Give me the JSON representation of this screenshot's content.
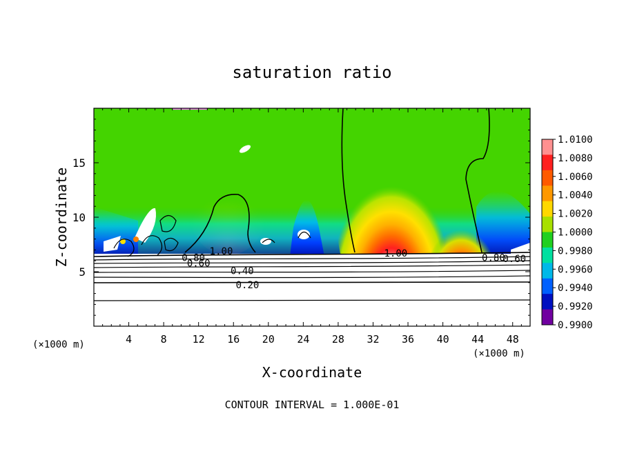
{
  "chart_data": {
    "type": "heatmap",
    "title": "saturation ratio",
    "xlabel": "X-coordinate",
    "ylabel": "Z-coordinate",
    "x_unit_left": "(×1000 m)",
    "x_unit_right": "(×1000 m)",
    "xlim": [
      0,
      50
    ],
    "ylim": [
      0,
      20
    ],
    "xticks": [
      4,
      8,
      12,
      16,
      20,
      24,
      28,
      32,
      36,
      40,
      44,
      48
    ],
    "xtick_labels": [
      "4",
      "8",
      "12",
      "16",
      "20",
      "24",
      "28",
      "32",
      "36",
      "40",
      "44",
      "48"
    ],
    "yticks": [
      5,
      10,
      15
    ],
    "ytick_labels": [
      "5",
      "10",
      "15"
    ],
    "footer": "CONTOUR INTERVAL = 1.000E-01",
    "colorbar": {
      "levels": [
        1.01,
        1.008,
        1.006,
        1.004,
        1.002,
        1.0,
        0.998,
        0.996,
        0.994,
        0.992,
        0.99
      ],
      "labels": [
        "1.0100",
        "1.0080",
        "1.0060",
        "1.0040",
        "1.0020",
        "1.0000",
        "0.9980",
        "0.9960",
        "0.9940",
        "0.9920",
        "0.9900"
      ],
      "colors": [
        "#ff9090",
        "#ff2020",
        "#ff5a00",
        "#ff9800",
        "#ffd800",
        "#a8e000",
        "#20d020",
        "#00e0a0",
        "#00b8e8",
        "#0060ff",
        "#0010c0",
        "#7000a0"
      ]
    },
    "contour_labels": [
      {
        "text": "1.00",
        "x": 14.6,
        "z": 6.9
      },
      {
        "text": "0.80",
        "x": 11.4,
        "z": 6.3
      },
      {
        "text": "0.60",
        "x": 12.0,
        "z": 5.8
      },
      {
        "text": "0.40",
        "x": 17.0,
        "z": 5.1
      },
      {
        "text": "0.20",
        "x": 17.6,
        "z": 3.8
      },
      {
        "text": "1.00",
        "x": 34.6,
        "z": 6.7
      },
      {
        "text": "0.80",
        "x": 45.8,
        "z": 6.3
      },
      {
        "text": "0.60",
        "x": 48.2,
        "z": 6.2
      }
    ],
    "contour_levels": [
      0.2,
      0.4,
      0.6,
      0.8,
      1.0
    ]
  }
}
